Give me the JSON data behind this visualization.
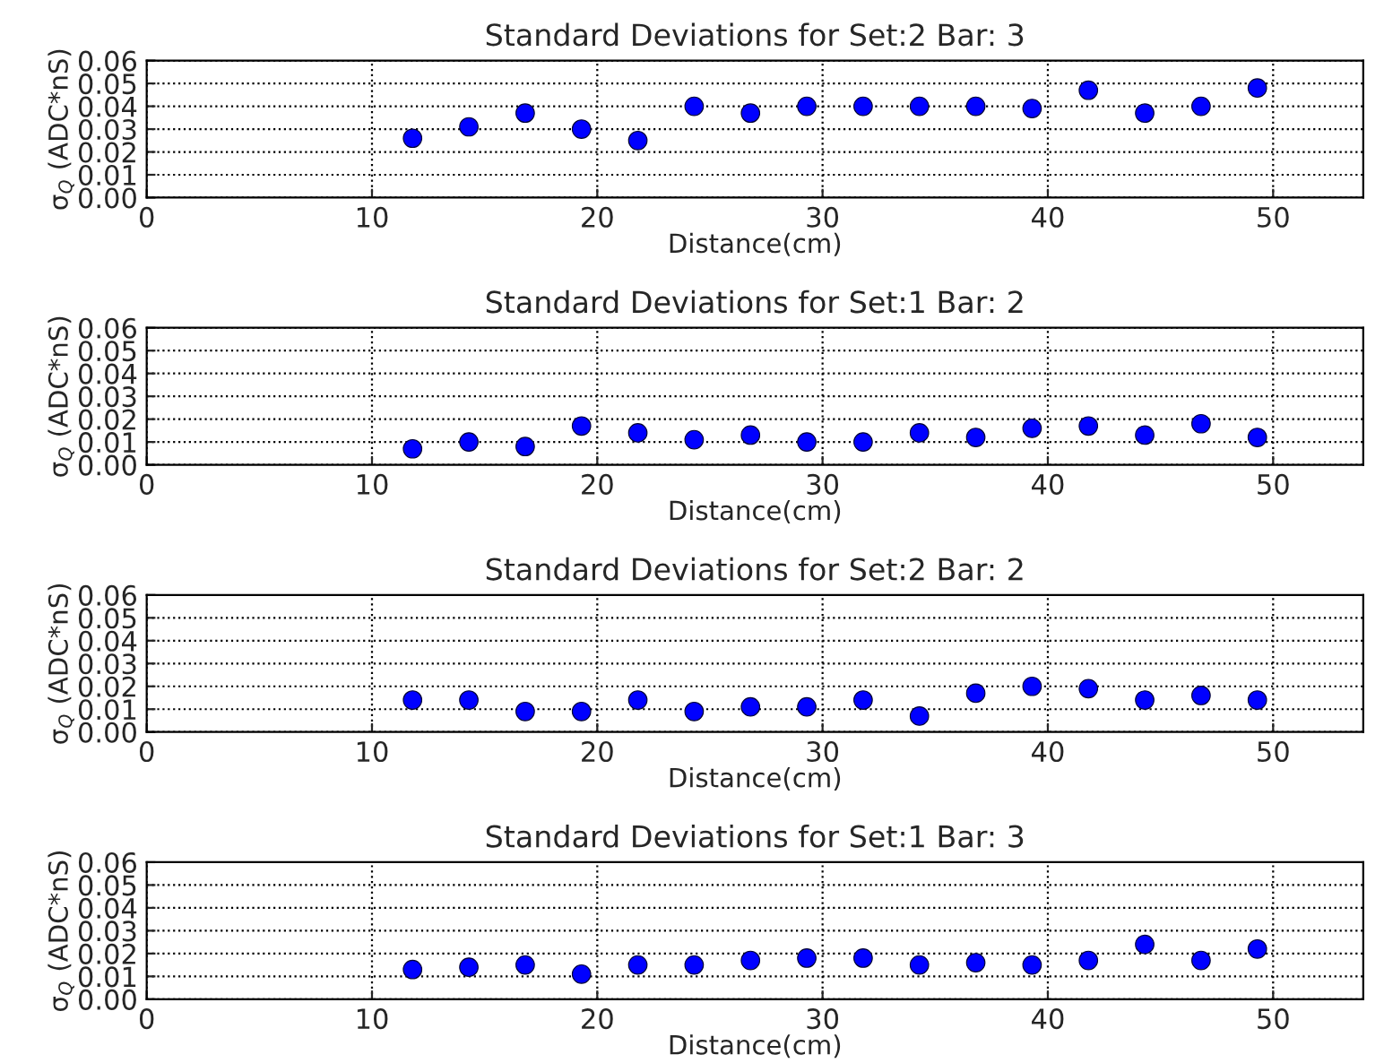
{
  "chart_data": [
    {
      "type": "scatter",
      "title": "Standard Deviations for Set:2 Bar: 3",
      "xlabel": "Distance(cm)",
      "ylabel": "σ$_{Q}$ (ADC*nS)",
      "x": [
        11.8,
        14.3,
        16.8,
        19.3,
        21.8,
        24.3,
        26.8,
        29.3,
        31.8,
        34.3,
        36.8,
        39.3,
        41.8,
        44.3,
        46.8,
        49.3
      ],
      "series": [
        {
          "color": "#0000ff",
          "values": [
            0.026,
            0.031,
            0.037,
            0.03,
            0.025,
            0.04,
            0.037,
            0.04,
            0.04,
            0.04,
            0.04,
            0.039,
            0.047,
            0.037,
            0.04,
            0.048
          ]
        }
      ],
      "xlim": [
        0,
        54
      ],
      "xticks": [
        0,
        10,
        20,
        30,
        40,
        50
      ],
      "ylim": [
        0,
        0.06
      ],
      "yticks": [
        {
          "value": 0,
          "label": "0.00"
        },
        {
          "value": 0.01,
          "label": "0.01"
        },
        {
          "value": 0.02,
          "label": "0.02"
        },
        {
          "value": 0.03,
          "label": "0.03"
        },
        {
          "value": 0.04,
          "label": "0.04"
        },
        {
          "value": 0.05,
          "label": "0.05"
        },
        {
          "value": 0.06,
          "label": "0.06"
        }
      ],
      "grid": true,
      "marker": "circle"
    },
    {
      "type": "scatter",
      "title": "Standard Deviations for Set:1 Bar: 2",
      "xlabel": "Distance(cm)",
      "ylabel": "σ$_{Q}$ (ADC*nS)",
      "x": [
        11.8,
        14.3,
        16.8,
        19.3,
        21.8,
        24.3,
        26.8,
        29.3,
        31.8,
        34.3,
        36.8,
        39.3,
        41.8,
        44.3,
        46.8,
        49.3
      ],
      "series": [
        {
          "color": "#0000ff",
          "values": [
            0.007,
            0.01,
            0.008,
            0.017,
            0.014,
            0.011,
            0.013,
            0.01,
            0.01,
            0.014,
            0.012,
            0.016,
            0.017,
            0.013,
            0.018,
            0.012
          ]
        }
      ],
      "xlim": [
        0,
        54
      ],
      "xticks": [
        0,
        10,
        20,
        30,
        40,
        50
      ],
      "ylim": [
        0,
        0.06
      ],
      "yticks": [
        {
          "value": 0,
          "label": "0.00"
        },
        {
          "value": 0.01,
          "label": "0.01"
        },
        {
          "value": 0.02,
          "label": "0.02"
        },
        {
          "value": 0.03,
          "label": "0.03"
        },
        {
          "value": 0.04,
          "label": "0.04"
        },
        {
          "value": 0.05,
          "label": "0.05"
        },
        {
          "value": 0.06,
          "label": "0.06"
        }
      ],
      "grid": true,
      "marker": "circle"
    },
    {
      "type": "scatter",
      "title": "Standard Deviations for Set:2 Bar: 2",
      "xlabel": "Distance(cm)",
      "ylabel": "σ$_{Q}$ (ADC*nS)",
      "x": [
        11.8,
        14.3,
        16.8,
        19.3,
        21.8,
        24.3,
        26.8,
        29.3,
        31.8,
        34.3,
        36.8,
        39.3,
        41.8,
        44.3,
        46.8,
        49.3
      ],
      "series": [
        {
          "color": "#0000ff",
          "values": [
            0.014,
            0.014,
            0.009,
            0.009,
            0.014,
            0.009,
            0.011,
            0.011,
            0.014,
            0.007,
            0.017,
            0.02,
            0.019,
            0.014,
            0.016,
            0.014
          ]
        }
      ],
      "xlim": [
        0,
        54
      ],
      "xticks": [
        0,
        10,
        20,
        30,
        40,
        50
      ],
      "ylim": [
        0,
        0.06
      ],
      "yticks": [
        {
          "value": 0,
          "label": "0.00"
        },
        {
          "value": 0.01,
          "label": "0.01"
        },
        {
          "value": 0.02,
          "label": "0.02"
        },
        {
          "value": 0.03,
          "label": "0.03"
        },
        {
          "value": 0.04,
          "label": "0.04"
        },
        {
          "value": 0.05,
          "label": "0.05"
        },
        {
          "value": 0.06,
          "label": "0.06"
        }
      ],
      "grid": true,
      "marker": "circle"
    },
    {
      "type": "scatter",
      "title": "Standard Deviations for Set:1 Bar: 3",
      "xlabel": "Distance(cm)",
      "ylabel": "σ$_{Q}$ (ADC*nS)",
      "x": [
        11.8,
        14.3,
        16.8,
        19.3,
        21.8,
        24.3,
        26.8,
        29.3,
        31.8,
        34.3,
        36.8,
        39.3,
        41.8,
        44.3,
        46.8,
        49.3
      ],
      "series": [
        {
          "color": "#0000ff",
          "values": [
            0.013,
            0.014,
            0.015,
            0.011,
            0.015,
            0.015,
            0.017,
            0.018,
            0.018,
            0.015,
            0.016,
            0.015,
            0.017,
            0.024,
            0.017,
            0.022
          ]
        }
      ],
      "xlim": [
        0,
        54
      ],
      "xticks": [
        0,
        10,
        20,
        30,
        40,
        50
      ],
      "ylim": [
        0,
        0.06
      ],
      "yticks": [
        {
          "value": 0,
          "label": "0.00"
        },
        {
          "value": 0.01,
          "label": "0.01"
        },
        {
          "value": 0.02,
          "label": "0.02"
        },
        {
          "value": 0.03,
          "label": "0.03"
        },
        {
          "value": 0.04,
          "label": "0.04"
        },
        {
          "value": 0.05,
          "label": "0.05"
        },
        {
          "value": 0.06,
          "label": "0.06"
        }
      ],
      "grid": true,
      "marker": "circle"
    }
  ]
}
